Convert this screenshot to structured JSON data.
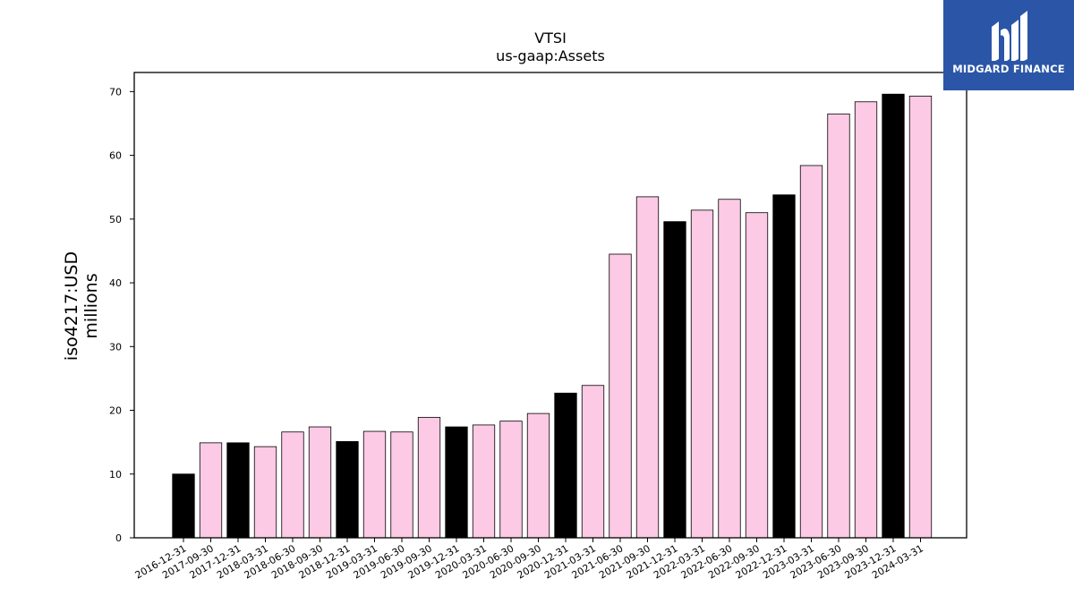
{
  "chart_data": {
    "type": "bar",
    "title": "VTSI",
    "subtitle": "us-gaap:Assets",
    "ylabel": "iso4217:USD",
    "ylabel2": "millions",
    "ylim": [
      0,
      73
    ],
    "yticks": [
      0,
      10,
      20,
      30,
      40,
      50,
      60,
      70
    ],
    "colors": {
      "annual": "#000000",
      "quarterly": "#fccae4"
    },
    "categories": [
      "2016-12-31",
      "2017-09-30",
      "2017-12-31",
      "2018-03-31",
      "2018-06-30",
      "2018-09-30",
      "2018-12-31",
      "2019-03-31",
      "2019-06-30",
      "2019-09-30",
      "2019-12-31",
      "2020-03-31",
      "2020-06-30",
      "2020-09-30",
      "2020-12-31",
      "2021-03-31",
      "2021-06-30",
      "2021-09-30",
      "2021-12-31",
      "2022-03-31",
      "2022-06-30",
      "2022-09-30",
      "2022-12-31",
      "2023-03-31",
      "2023-06-30",
      "2023-09-30",
      "2023-12-31",
      "2024-03-31"
    ],
    "values": [
      10.0,
      14.9,
      14.9,
      14.3,
      16.6,
      17.4,
      15.1,
      16.7,
      16.6,
      18.9,
      17.4,
      17.7,
      18.3,
      19.5,
      22.7,
      23.9,
      44.5,
      53.5,
      49.6,
      51.4,
      53.1,
      51.0,
      53.8,
      58.4,
      66.5,
      68.4,
      69.6,
      69.3
    ],
    "annual": [
      true,
      false,
      true,
      false,
      false,
      false,
      true,
      false,
      false,
      false,
      true,
      false,
      false,
      false,
      true,
      false,
      false,
      false,
      true,
      false,
      false,
      false,
      true,
      false,
      false,
      false,
      true,
      false
    ]
  },
  "logo": {
    "text": "MIDGARD FINANCE",
    "icon": "midgard-logo-icon"
  }
}
